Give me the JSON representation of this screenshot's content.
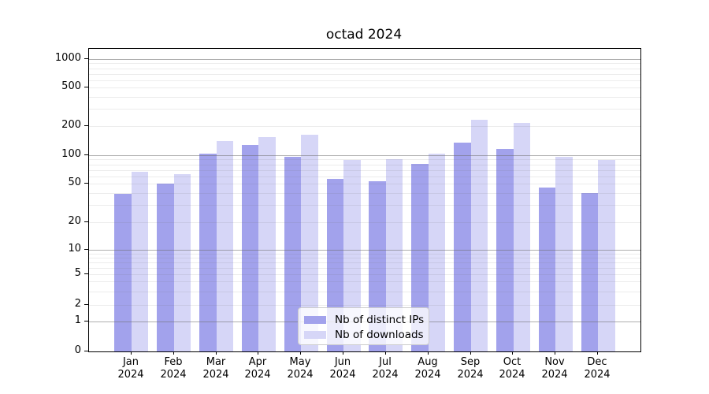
{
  "chart_data": {
    "type": "bar",
    "title": "octad 2024",
    "categories": [
      "Jan",
      "Feb",
      "Mar",
      "Apr",
      "May",
      "Jun",
      "Jul",
      "Aug",
      "Sep",
      "Oct",
      "Nov",
      "Dec"
    ],
    "category_year": "2024",
    "series": [
      {
        "name": "Nb of distinct IPs",
        "color": "#a2a2ec",
        "values": [
          39,
          50,
          104,
          128,
          97,
          56,
          53,
          81,
          136,
          116,
          46,
          40
        ]
      },
      {
        "name": "Nb of downloads",
        "color": "#d6d6f7",
        "values": [
          67,
          63,
          140,
          155,
          164,
          90,
          91,
          104,
          234,
          217,
          97,
          90
        ]
      }
    ],
    "y_ticks": [
      1000,
      500,
      200,
      100,
      50,
      20,
      10,
      5,
      2,
      1,
      0
    ],
    "yscale": "log-like with linear segment below 1 (ticks 0,1,2,5 per decade)",
    "ylim": [
      0,
      1260
    ],
    "grid": true,
    "legend_position": "lower center inside plot",
    "xlabel": "",
    "ylabel": ""
  },
  "colors": {
    "bar_distinct_ips": "#a2a2ec",
    "bar_downloads": "#d6d6f7",
    "major_grid": "#afafaf",
    "minor_grid": "#ececec",
    "spine": "#000000",
    "legend_border": "#cccccc"
  }
}
